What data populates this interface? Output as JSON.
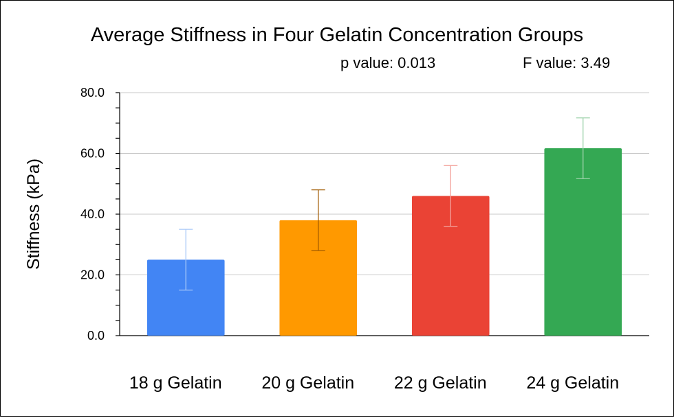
{
  "chart_data": {
    "type": "bar",
    "title": "Average Stiffness in Four Gelatin Concentration Groups",
    "annotations": [
      {
        "text": "p value: 0.013"
      },
      {
        "text": "F value: 3.49"
      }
    ],
    "xlabel": "",
    "ylabel": "Stiffness (kPa)",
    "ylim": [
      0,
      80
    ],
    "yticks": [
      "0.0",
      "20.0",
      "40.0",
      "60.0",
      "80.0"
    ],
    "ytick_values": [
      0,
      20,
      40,
      60,
      80
    ],
    "grid": true,
    "legend": "none",
    "categories": [
      "18 g Gelatin",
      "20 g Gelatin",
      "22 g Gelatin",
      "24 g Gelatin"
    ],
    "values": [
      25.0,
      38.0,
      46.0,
      61.7
    ],
    "errors": [
      10.0,
      10.0,
      10.0,
      10.0
    ],
    "colors": [
      "#4285F4",
      "#FF9900",
      "#EA4335",
      "#34A853"
    ],
    "error_bar_colors": [
      "#a9c8f8",
      "#a05a00",
      "#f3a09a",
      "#9fd3ac"
    ]
  }
}
